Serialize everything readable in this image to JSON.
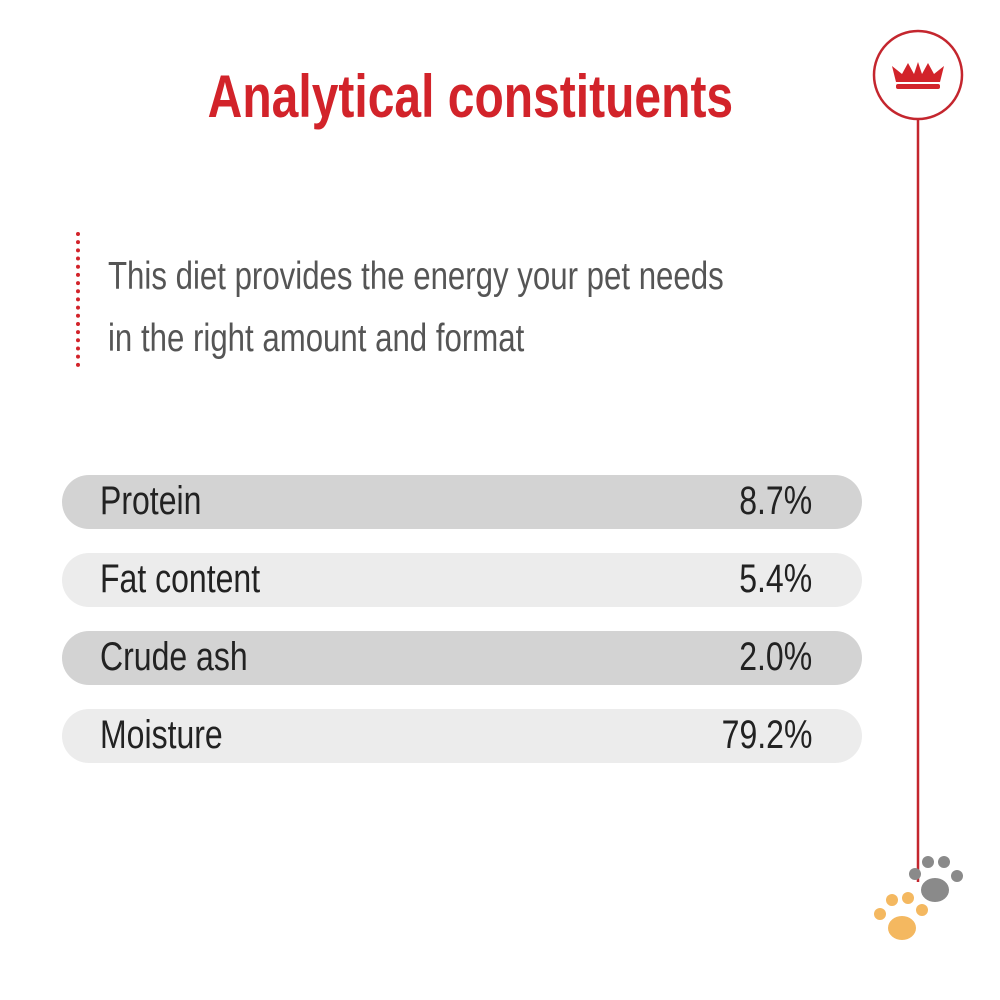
{
  "header": {
    "title": "Analytical constituents"
  },
  "intro": {
    "lines": [
      "This diet provides the energy your pet needs",
      "in the right amount and format"
    ]
  },
  "table": {
    "rows": [
      [
        "Protein",
        "8.7%"
      ],
      [
        "Fat content",
        "5.4%"
      ],
      [
        "Crude ash",
        "2.0%"
      ],
      [
        "Moisture",
        "79.2%"
      ]
    ]
  }
}
